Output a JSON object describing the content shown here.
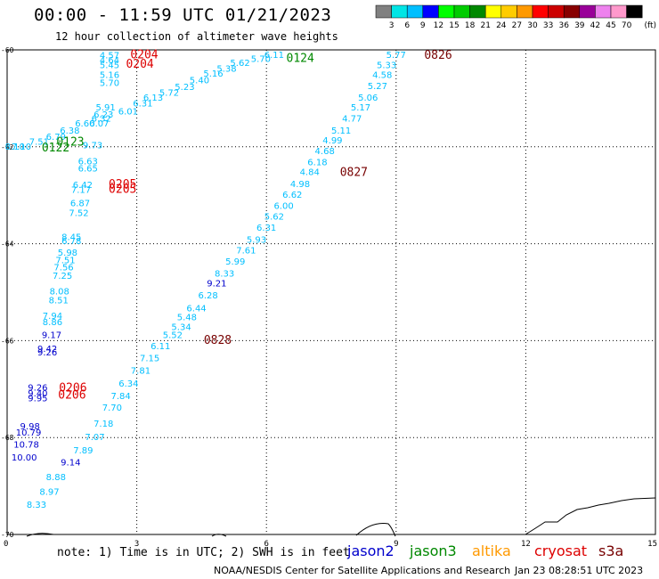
{
  "header": {
    "title": "00:00 - 11:59 UTC 01/21/2023",
    "subtitle": "12 hour collection of altimeter wave heights"
  },
  "footer": {
    "note": "note: 1) Time is in UTC; 2) SWH is in feet",
    "credit": "NOAA/NESDIS Center for Satellite Applications and Research",
    "timestamp": "Jan 23 08:28:51 UTC 2023"
  },
  "satellites": [
    {
      "name": "jason2",
      "color": "#0000cc"
    },
    {
      "name": "jason3",
      "color": "#008800"
    },
    {
      "name": "altika",
      "color": "#ff9900"
    },
    {
      "name": "cryosat",
      "color": "#dd0000"
    },
    {
      "name": "s3a",
      "color": "#770000"
    }
  ],
  "colorbar": {
    "unit": "(ft)",
    "labels": [
      "3",
      "6",
      "9",
      "12",
      "15",
      "18",
      "21",
      "24",
      "27",
      "30",
      "33",
      "36",
      "39",
      "42",
      "45",
      "70"
    ],
    "colors": [
      "#808080",
      "#00e5e5",
      "#00bfff",
      "#0000ff",
      "#00ff00",
      "#00cc00",
      "#008800",
      "#ffff00",
      "#ffcc00",
      "#ff9900",
      "#ff0000",
      "#cc0000",
      "#880000",
      "#990099",
      "#ee82ee",
      "#ff99cc",
      "#000000"
    ]
  },
  "chart_data": {
    "type": "scatter",
    "title": "00:00 - 11:59 UTC 01/21/2023",
    "subtitle": "12 hour collection of altimeter wave heights",
    "xlim": [
      0,
      15
    ],
    "ylim": [
      -70,
      -60
    ],
    "x_ticks": [
      "0",
      "3",
      "6",
      "9",
      "12",
      "15"
    ],
    "y_ticks": [
      "-60",
      "-62",
      "-64",
      "-66",
      "-68",
      "-70"
    ],
    "grid": true,
    "colors": {
      "cyan": "#00bfff",
      "blue": "#0000cc",
      "green": "#008800",
      "red": "#dd0000",
      "darkred": "#770000"
    },
    "labels": [
      {
        "x": 2.14,
        "y": -60.05,
        "text": "4.57",
        "c": "cyan"
      },
      {
        "x": 2.14,
        "y": -60.15,
        "text": "4.64",
        "c": "cyan"
      },
      {
        "x": 2.14,
        "y": -60.25,
        "text": "5.45",
        "c": "cyan"
      },
      {
        "x": 2.14,
        "y": -60.45,
        "text": "5.16",
        "c": "cyan"
      },
      {
        "x": 2.14,
        "y": -60.62,
        "text": "5.70",
        "c": "cyan"
      },
      {
        "x": 2.85,
        "y": -60.03,
        "text": "0204",
        "c": "red",
        "big": true
      },
      {
        "x": 2.75,
        "y": -60.22,
        "text": "0204",
        "c": "red",
        "big": true
      },
      {
        "x": 5.95,
        "y": -60.04,
        "text": "6.11",
        "c": "cyan"
      },
      {
        "x": 5.64,
        "y": -60.12,
        "text": "5.70",
        "c": "cyan"
      },
      {
        "x": 5.16,
        "y": -60.2,
        "text": "5.62",
        "c": "cyan"
      },
      {
        "x": 4.85,
        "y": -60.32,
        "text": "5.38",
        "c": "cyan"
      },
      {
        "x": 4.54,
        "y": -60.42,
        "text": "5.16",
        "c": "cyan"
      },
      {
        "x": 4.22,
        "y": -60.56,
        "text": "5.40",
        "c": "cyan"
      },
      {
        "x": 3.88,
        "y": -60.7,
        "text": "5.23",
        "c": "cyan"
      },
      {
        "x": 3.52,
        "y": -60.82,
        "text": "5.72",
        "c": "cyan"
      },
      {
        "x": 3.15,
        "y": -60.92,
        "text": "6.13",
        "c": "cyan"
      },
      {
        "x": 2.91,
        "y": -61.04,
        "text": "6.31",
        "c": "cyan"
      },
      {
        "x": 2.57,
        "y": -61.2,
        "text": "6.01",
        "c": "cyan"
      },
      {
        "x": 2.05,
        "y": -61.12,
        "text": "5.91",
        "c": "cyan"
      },
      {
        "x": 2.0,
        "y": -61.27,
        "text": "6.23",
        "c": "cyan"
      },
      {
        "x": 1.95,
        "y": -61.35,
        "text": "6.32",
        "c": "cyan"
      },
      {
        "x": 1.9,
        "y": -61.45,
        "text": "6.07",
        "c": "cyan"
      },
      {
        "x": 1.57,
        "y": -61.45,
        "text": "6.60",
        "c": "cyan"
      },
      {
        "x": 1.22,
        "y": -61.6,
        "text": "6.38",
        "c": "cyan"
      },
      {
        "x": 0.9,
        "y": -61.73,
        "text": "6.79",
        "c": "cyan"
      },
      {
        "x": 0.51,
        "y": -61.83,
        "text": "7.51",
        "c": "cyan"
      },
      {
        "x": 0.1,
        "y": -61.93,
        "text": "7.10",
        "c": "cyan"
      },
      {
        "x": -0.05,
        "y": -61.93,
        "text": "8.10",
        "c": "cyan"
      },
      {
        "x": 1.75,
        "y": -61.9,
        "text": "9.73",
        "c": "cyan"
      },
      {
        "x": 1.14,
        "y": -61.83,
        "text": "0123",
        "c": "green",
        "big": true
      },
      {
        "x": 0.8,
        "y": -61.95,
        "text": "0122",
        "c": "green",
        "big": true
      },
      {
        "x": 6.46,
        "y": -60.1,
        "text": "0124",
        "c": "green",
        "big": true
      },
      {
        "x": 1.64,
        "y": -62.23,
        "text": "6.63",
        "c": "cyan"
      },
      {
        "x": 1.64,
        "y": -62.38,
        "text": "6.65",
        "c": "cyan"
      },
      {
        "x": 1.52,
        "y": -62.72,
        "text": "6.42",
        "c": "cyan"
      },
      {
        "x": 1.48,
        "y": -62.82,
        "text": "7.17",
        "c": "cyan"
      },
      {
        "x": 2.35,
        "y": -62.7,
        "text": "0205",
        "c": "red",
        "big": true
      },
      {
        "x": 2.35,
        "y": -62.8,
        "text": "0205",
        "c": "red",
        "big": true
      },
      {
        "x": 1.46,
        "y": -63.1,
        "text": "6.87",
        "c": "cyan"
      },
      {
        "x": 1.43,
        "y": -63.3,
        "text": "7.52",
        "c": "cyan"
      },
      {
        "x": 1.26,
        "y": -63.8,
        "text": "8.45",
        "c": "cyan"
      },
      {
        "x": 1.26,
        "y": -63.88,
        "text": "6.78",
        "c": "cyan"
      },
      {
        "x": 1.17,
        "y": -64.12,
        "text": "5.98",
        "c": "cyan"
      },
      {
        "x": 1.12,
        "y": -64.27,
        "text": "7.51",
        "c": "cyan"
      },
      {
        "x": 1.08,
        "y": -64.42,
        "text": "7.56",
        "c": "cyan"
      },
      {
        "x": 1.05,
        "y": -64.6,
        "text": "7.25",
        "c": "cyan"
      },
      {
        "x": 0.98,
        "y": -64.92,
        "text": "8.08",
        "c": "cyan"
      },
      {
        "x": 0.96,
        "y": -65.1,
        "text": "8.51",
        "c": "cyan"
      },
      {
        "x": 0.82,
        "y": -65.42,
        "text": "7.94",
        "c": "cyan"
      },
      {
        "x": 0.82,
        "y": -65.55,
        "text": "8.86",
        "c": "cyan"
      },
      {
        "x": 0.8,
        "y": -65.82,
        "text": "9.17",
        "c": "blue"
      },
      {
        "x": 0.7,
        "y": -66.1,
        "text": "9.42",
        "c": "blue"
      },
      {
        "x": 0.7,
        "y": -66.18,
        "text": "9.26",
        "c": "blue"
      },
      {
        "x": 0.48,
        "y": -66.9,
        "text": "9.26",
        "c": "blue"
      },
      {
        "x": 0.48,
        "y": -67.02,
        "text": "9.40",
        "c": "blue"
      },
      {
        "x": 0.48,
        "y": -67.12,
        "text": "9.95",
        "c": "blue"
      },
      {
        "x": 1.2,
        "y": -66.9,
        "text": "0206",
        "c": "red",
        "big": true
      },
      {
        "x": 1.18,
        "y": -67.05,
        "text": "0206",
        "c": "red",
        "big": true
      },
      {
        "x": 0.3,
        "y": -67.7,
        "text": "9.98",
        "c": "blue"
      },
      {
        "x": 0.2,
        "y": -67.83,
        "text": "10.79",
        "c": "blue"
      },
      {
        "x": 0.15,
        "y": -68.08,
        "text": "10.78",
        "c": "blue"
      },
      {
        "x": 0.1,
        "y": -68.35,
        "text": "10.00",
        "c": "blue"
      },
      {
        "x": 1.24,
        "y": -68.45,
        "text": "9.14",
        "c": "blue"
      },
      {
        "x": 1.53,
        "y": -68.2,
        "text": "7.89",
        "c": "cyan"
      },
      {
        "x": 1.8,
        "y": -67.92,
        "text": "7.07",
        "c": "cyan"
      },
      {
        "x": 2.0,
        "y": -67.65,
        "text": "7.18",
        "c": "cyan"
      },
      {
        "x": 2.2,
        "y": -67.32,
        "text": "7.70",
        "c": "cyan"
      },
      {
        "x": 2.4,
        "y": -67.08,
        "text": "7.84",
        "c": "cyan"
      },
      {
        "x": 2.58,
        "y": -66.82,
        "text": "6.34",
        "c": "cyan"
      },
      {
        "x": 2.86,
        "y": -66.55,
        "text": "7.81",
        "c": "cyan"
      },
      {
        "x": 3.07,
        "y": -66.3,
        "text": "7.15",
        "c": "cyan"
      },
      {
        "x": 3.32,
        "y": -66.05,
        "text": "6.11",
        "c": "cyan"
      },
      {
        "x": 3.6,
        "y": -65.82,
        "text": "5.52",
        "c": "cyan"
      },
      {
        "x": 3.8,
        "y": -65.65,
        "text": "5.34",
        "c": "cyan"
      },
      {
        "x": 3.93,
        "y": -65.45,
        "text": "5.48",
        "c": "cyan"
      },
      {
        "x": 4.15,
        "y": -65.27,
        "text": "6.44",
        "c": "cyan"
      },
      {
        "x": 4.42,
        "y": -65.0,
        "text": "6.28",
        "c": "cyan"
      },
      {
        "x": 4.62,
        "y": -64.75,
        "text": "9.21",
        "c": "blue"
      },
      {
        "x": 4.8,
        "y": -64.55,
        "text": "8.33",
        "c": "cyan"
      },
      {
        "x": 5.05,
        "y": -64.3,
        "text": "5.99",
        "c": "cyan"
      },
      {
        "x": 5.3,
        "y": -64.07,
        "text": "7.61",
        "c": "cyan"
      },
      {
        "x": 5.54,
        "y": -63.85,
        "text": "5.93",
        "c": "cyan"
      },
      {
        "x": 5.77,
        "y": -63.6,
        "text": "6.31",
        "c": "cyan"
      },
      {
        "x": 5.95,
        "y": -63.37,
        "text": "5.62",
        "c": "cyan"
      },
      {
        "x": 6.17,
        "y": -63.15,
        "text": "6.00",
        "c": "cyan"
      },
      {
        "x": 6.37,
        "y": -62.92,
        "text": "6.62",
        "c": "cyan"
      },
      {
        "x": 6.55,
        "y": -62.7,
        "text": "4.98",
        "c": "cyan"
      },
      {
        "x": 6.77,
        "y": -62.45,
        "text": "4.84",
        "c": "cyan"
      },
      {
        "x": 6.95,
        "y": -62.25,
        "text": "6.18",
        "c": "cyan"
      },
      {
        "x": 7.12,
        "y": -62.02,
        "text": "4.68",
        "c": "cyan"
      },
      {
        "x": 7.3,
        "y": -61.8,
        "text": "4.99",
        "c": "cyan"
      },
      {
        "x": 7.5,
        "y": -61.6,
        "text": "5.11",
        "c": "cyan"
      },
      {
        "x": 7.75,
        "y": -61.35,
        "text": "4.77",
        "c": "cyan"
      },
      {
        "x": 7.95,
        "y": -61.12,
        "text": "5.17",
        "c": "cyan"
      },
      {
        "x": 8.12,
        "y": -60.92,
        "text": "5.06",
        "c": "cyan"
      },
      {
        "x": 8.34,
        "y": -60.68,
        "text": "5.27",
        "c": "cyan"
      },
      {
        "x": 8.45,
        "y": -60.45,
        "text": "4.58",
        "c": "cyan"
      },
      {
        "x": 8.55,
        "y": -60.25,
        "text": "5.33",
        "c": "cyan"
      },
      {
        "x": 8.77,
        "y": -60.04,
        "text": "5.77",
        "c": "cyan"
      },
      {
        "x": 9.65,
        "y": -60.04,
        "text": "0826",
        "c": "darkred",
        "big": true
      },
      {
        "x": 7.7,
        "y": -62.45,
        "text": "0827",
        "c": "darkred",
        "big": true
      },
      {
        "x": 4.55,
        "y": -65.92,
        "text": "0828",
        "c": "darkred",
        "big": true
      },
      {
        "x": 0.9,
        "y": -68.75,
        "text": "8.88",
        "c": "cyan"
      },
      {
        "x": 0.75,
        "y": -69.05,
        "text": "8.97",
        "c": "cyan"
      },
      {
        "x": 0.45,
        "y": -69.32,
        "text": "8.33",
        "c": "cyan"
      }
    ]
  }
}
